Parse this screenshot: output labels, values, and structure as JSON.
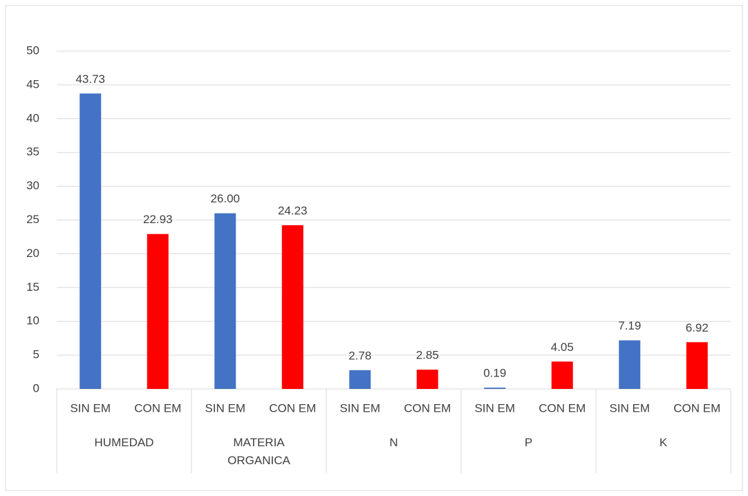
{
  "chart_data": {
    "type": "bar",
    "categories": [
      "HUMEDAD",
      "MATERIA ORGANICA",
      "N",
      "P",
      "K"
    ],
    "series": [
      {
        "name": "SIN EM",
        "color": "#4472c4",
        "values": [
          43.73,
          26,
          2.78,
          0.19,
          7.19
        ],
        "value_labels": [
          "43.73",
          "26.00",
          "2.78",
          "0.19",
          "7.19"
        ]
      },
      {
        "name": "CON EM",
        "color": "#ff0000",
        "values": [
          22.93,
          24.23,
          2.85,
          4.05,
          6.92
        ],
        "value_labels": [
          "22.93",
          "24.23",
          "2.85",
          "4.05",
          "6.92"
        ]
      }
    ],
    "ylim": [
      0,
      50
    ],
    "yticks": [
      0,
      5,
      10,
      15,
      20,
      25,
      30,
      35,
      40,
      45,
      50
    ],
    "grid": true
  }
}
